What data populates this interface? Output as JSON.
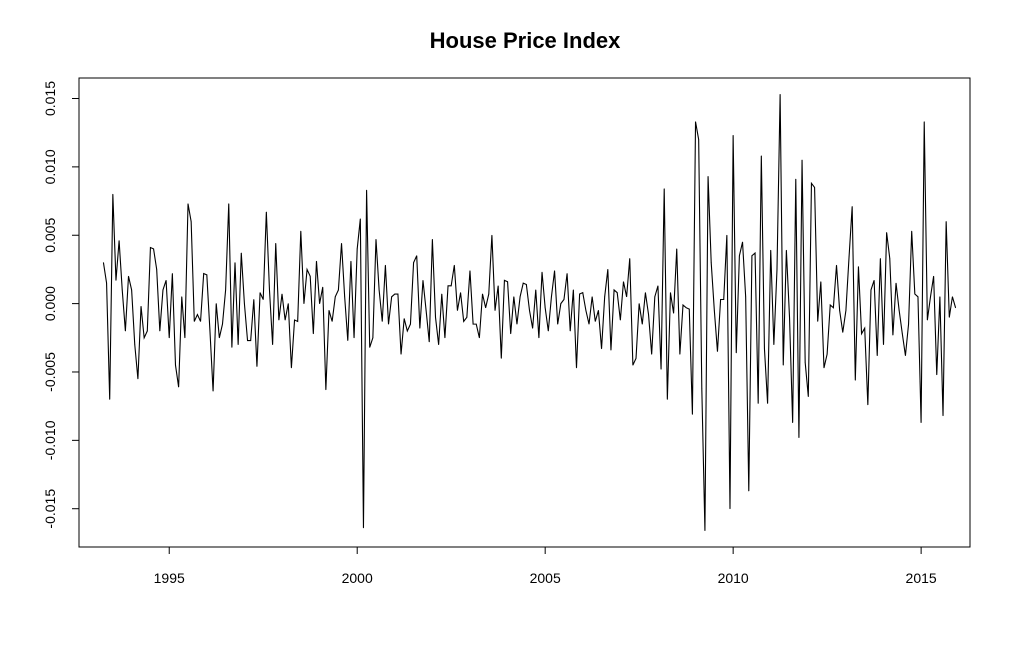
{
  "chart_data": {
    "type": "line",
    "title": "House Price Index",
    "xlabel": "",
    "ylabel": "",
    "xlim": [
      1992.6,
      2016.3
    ],
    "ylim": [
      -0.0178,
      0.0165
    ],
    "x_ticks": [
      1995,
      2000,
      2005,
      2010,
      2015
    ],
    "y_ticks": [
      -0.015,
      -0.01,
      -0.005,
      0.0,
      0.005,
      0.01,
      0.015
    ],
    "x_tick_labels": [
      "1995",
      "2000",
      "2005",
      "2010",
      "2015"
    ],
    "y_tick_labels": [
      "-0.015",
      "-0.010",
      "-0.005",
      "0.000",
      "0.005",
      "0.010",
      "0.015"
    ],
    "grid": false,
    "legend": "none",
    "series": [
      {
        "x_start": 1993.25,
        "x_step": 0.08333,
        "values": [
          0.003,
          0.0015,
          -0.007,
          0.008,
          0.0017,
          0.0046,
          0.001,
          -0.002,
          0.002,
          0.001,
          -0.003,
          -0.0055,
          -0.0002,
          -0.0025,
          -0.002,
          0.0041,
          0.004,
          0.0025,
          -0.002,
          0.001,
          0.0017,
          -0.0025,
          0.0022,
          -0.0045,
          -0.0061,
          0.0005,
          -0.0025,
          0.0073,
          0.006,
          -0.0013,
          -0.0008,
          -0.0013,
          0.0022,
          0.0021,
          -0.002,
          -0.0064,
          0.0,
          -0.0025,
          -0.0015,
          0.001,
          0.0073,
          -0.0032,
          0.003,
          -0.003,
          0.0037,
          0.0,
          -0.0027,
          -0.0027,
          0.0003,
          -0.0046,
          0.0008,
          0.0003,
          0.0067,
          0.001,
          -0.003,
          0.0044,
          -0.0012,
          0.0007,
          -0.0012,
          0.0,
          -0.0047,
          -0.0012,
          -0.0013,
          0.0053,
          0.0,
          0.0025,
          0.002,
          -0.0022,
          0.0031,
          0.0,
          0.0012,
          -0.0063,
          -0.0005,
          -0.0013,
          0.0005,
          0.001,
          0.0044,
          0.0005,
          -0.0027,
          0.0031,
          -0.0025,
          0.004,
          0.0062,
          -0.0164,
          0.0083,
          -0.0032,
          -0.0025,
          0.0047,
          0.001,
          -0.0013,
          0.0028,
          -0.0015,
          0.0005,
          0.0007,
          0.0007,
          -0.0037,
          -0.0011,
          -0.002,
          -0.0015,
          0.003,
          0.0035,
          -0.0018,
          0.0017,
          -0.0005,
          -0.0028,
          0.0047,
          -0.001,
          -0.003,
          0.0007,
          -0.0025,
          0.0013,
          0.0013,
          0.0028,
          -0.0005,
          0.0008,
          -0.0013,
          -0.001,
          0.0024,
          -0.0015,
          -0.0015,
          -0.0025,
          0.0007,
          -0.0003,
          0.0007,
          0.005,
          -0.0005,
          0.0013,
          -0.004,
          0.0017,
          0.0016,
          -0.0022,
          0.0005,
          -0.0015,
          0.0005,
          0.0015,
          0.0014,
          -0.0005,
          -0.0018,
          0.001,
          -0.0025,
          0.0023,
          -0.0003,
          -0.002,
          0.0005,
          0.0024,
          -0.0015,
          0.0,
          0.0003,
          0.0022,
          -0.002,
          0.001,
          -0.0047,
          0.0007,
          0.0008,
          -0.0005,
          -0.0015,
          0.0005,
          -0.0013,
          -0.0005,
          -0.0033,
          0.0005,
          0.0025,
          -0.0034,
          0.001,
          0.0008,
          -0.0012,
          0.0016,
          0.0005,
          0.0033,
          -0.0045,
          -0.004,
          0.0,
          -0.0015,
          0.0008,
          -0.0008,
          -0.0037,
          0.0005,
          0.0013,
          -0.0048,
          0.0084,
          -0.007,
          0.0008,
          -0.0007,
          0.004,
          -0.0037,
          -0.0001,
          -0.0003,
          -0.0004,
          -0.0081,
          0.0133,
          0.012,
          -0.0062,
          -0.0166,
          0.0093,
          0.003,
          -0.0005,
          -0.0035,
          0.0003,
          0.0003,
          0.005,
          -0.015,
          0.0123,
          -0.0036,
          0.0035,
          0.0045,
          0.0005,
          -0.0137,
          0.0035,
          0.0037,
          -0.0073,
          0.0108,
          -0.0033,
          -0.0073,
          0.0039,
          -0.003,
          0.0025,
          0.0153,
          -0.0045,
          0.0039,
          -0.001,
          -0.0087,
          0.0091,
          -0.0098,
          0.0105,
          -0.0043,
          -0.0068,
          0.0088,
          0.0085,
          -0.0013,
          0.0016,
          -0.0047,
          -0.0037,
          -0.0001,
          -0.0003,
          0.0028,
          -0.0005,
          -0.0021,
          -0.0005,
          0.0034,
          0.0071,
          -0.0056,
          0.0027,
          -0.0022,
          -0.0018,
          -0.0074,
          0.001,
          0.0017,
          -0.0038,
          0.0033,
          -0.003,
          0.0052,
          0.0033,
          -0.0023,
          0.0015,
          -0.0005,
          -0.0022,
          -0.0038,
          -0.0015,
          0.0053,
          0.0007,
          0.0005,
          -0.0087,
          0.0133,
          -0.0012,
          0.0005,
          0.002,
          -0.0052,
          0.0005,
          -0.0082,
          0.006,
          -0.001,
          0.0005,
          -0.0003
        ]
      }
    ]
  }
}
